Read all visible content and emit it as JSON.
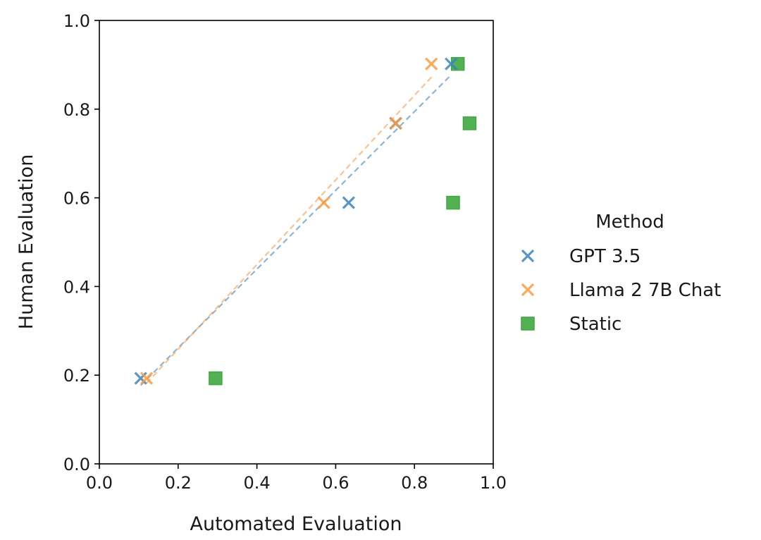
{
  "chart_data": {
    "type": "scatter",
    "title": "",
    "xlabel": "Automated Evaluation",
    "ylabel": "Human Evaluation",
    "xlim": [
      0.0,
      1.0
    ],
    "ylim": [
      0.0,
      1.0
    ],
    "xticks": [
      "0.0",
      "0.2",
      "0.4",
      "0.6",
      "0.8",
      "1.0"
    ],
    "yticks": [
      "0.0",
      "0.2",
      "0.4",
      "0.6",
      "0.8",
      "1.0"
    ],
    "grid": false,
    "legend": {
      "title": "Method",
      "placement": "outside-right"
    },
    "series": [
      {
        "name": "GPT 3.5",
        "marker": "x",
        "color": "#3a84c0",
        "trendline": true,
        "x": [
          0.105,
          0.633,
          0.752,
          0.893
        ],
        "y": [
          0.193,
          0.589,
          0.768,
          0.902
        ]
      },
      {
        "name": "Llama 2 7B Chat",
        "marker": "x",
        "color": "#ff9a3c",
        "trendline": true,
        "x": [
          0.12,
          0.57,
          0.753,
          0.843
        ],
        "y": [
          0.193,
          0.589,
          0.768,
          0.902
        ]
      },
      {
        "name": "Static",
        "marker": "square",
        "color": "#3fa83f",
        "trendline": false,
        "x": [
          0.295,
          0.898,
          0.94,
          0.91
        ],
        "y": [
          0.193,
          0.589,
          0.768,
          0.902
        ]
      }
    ]
  }
}
